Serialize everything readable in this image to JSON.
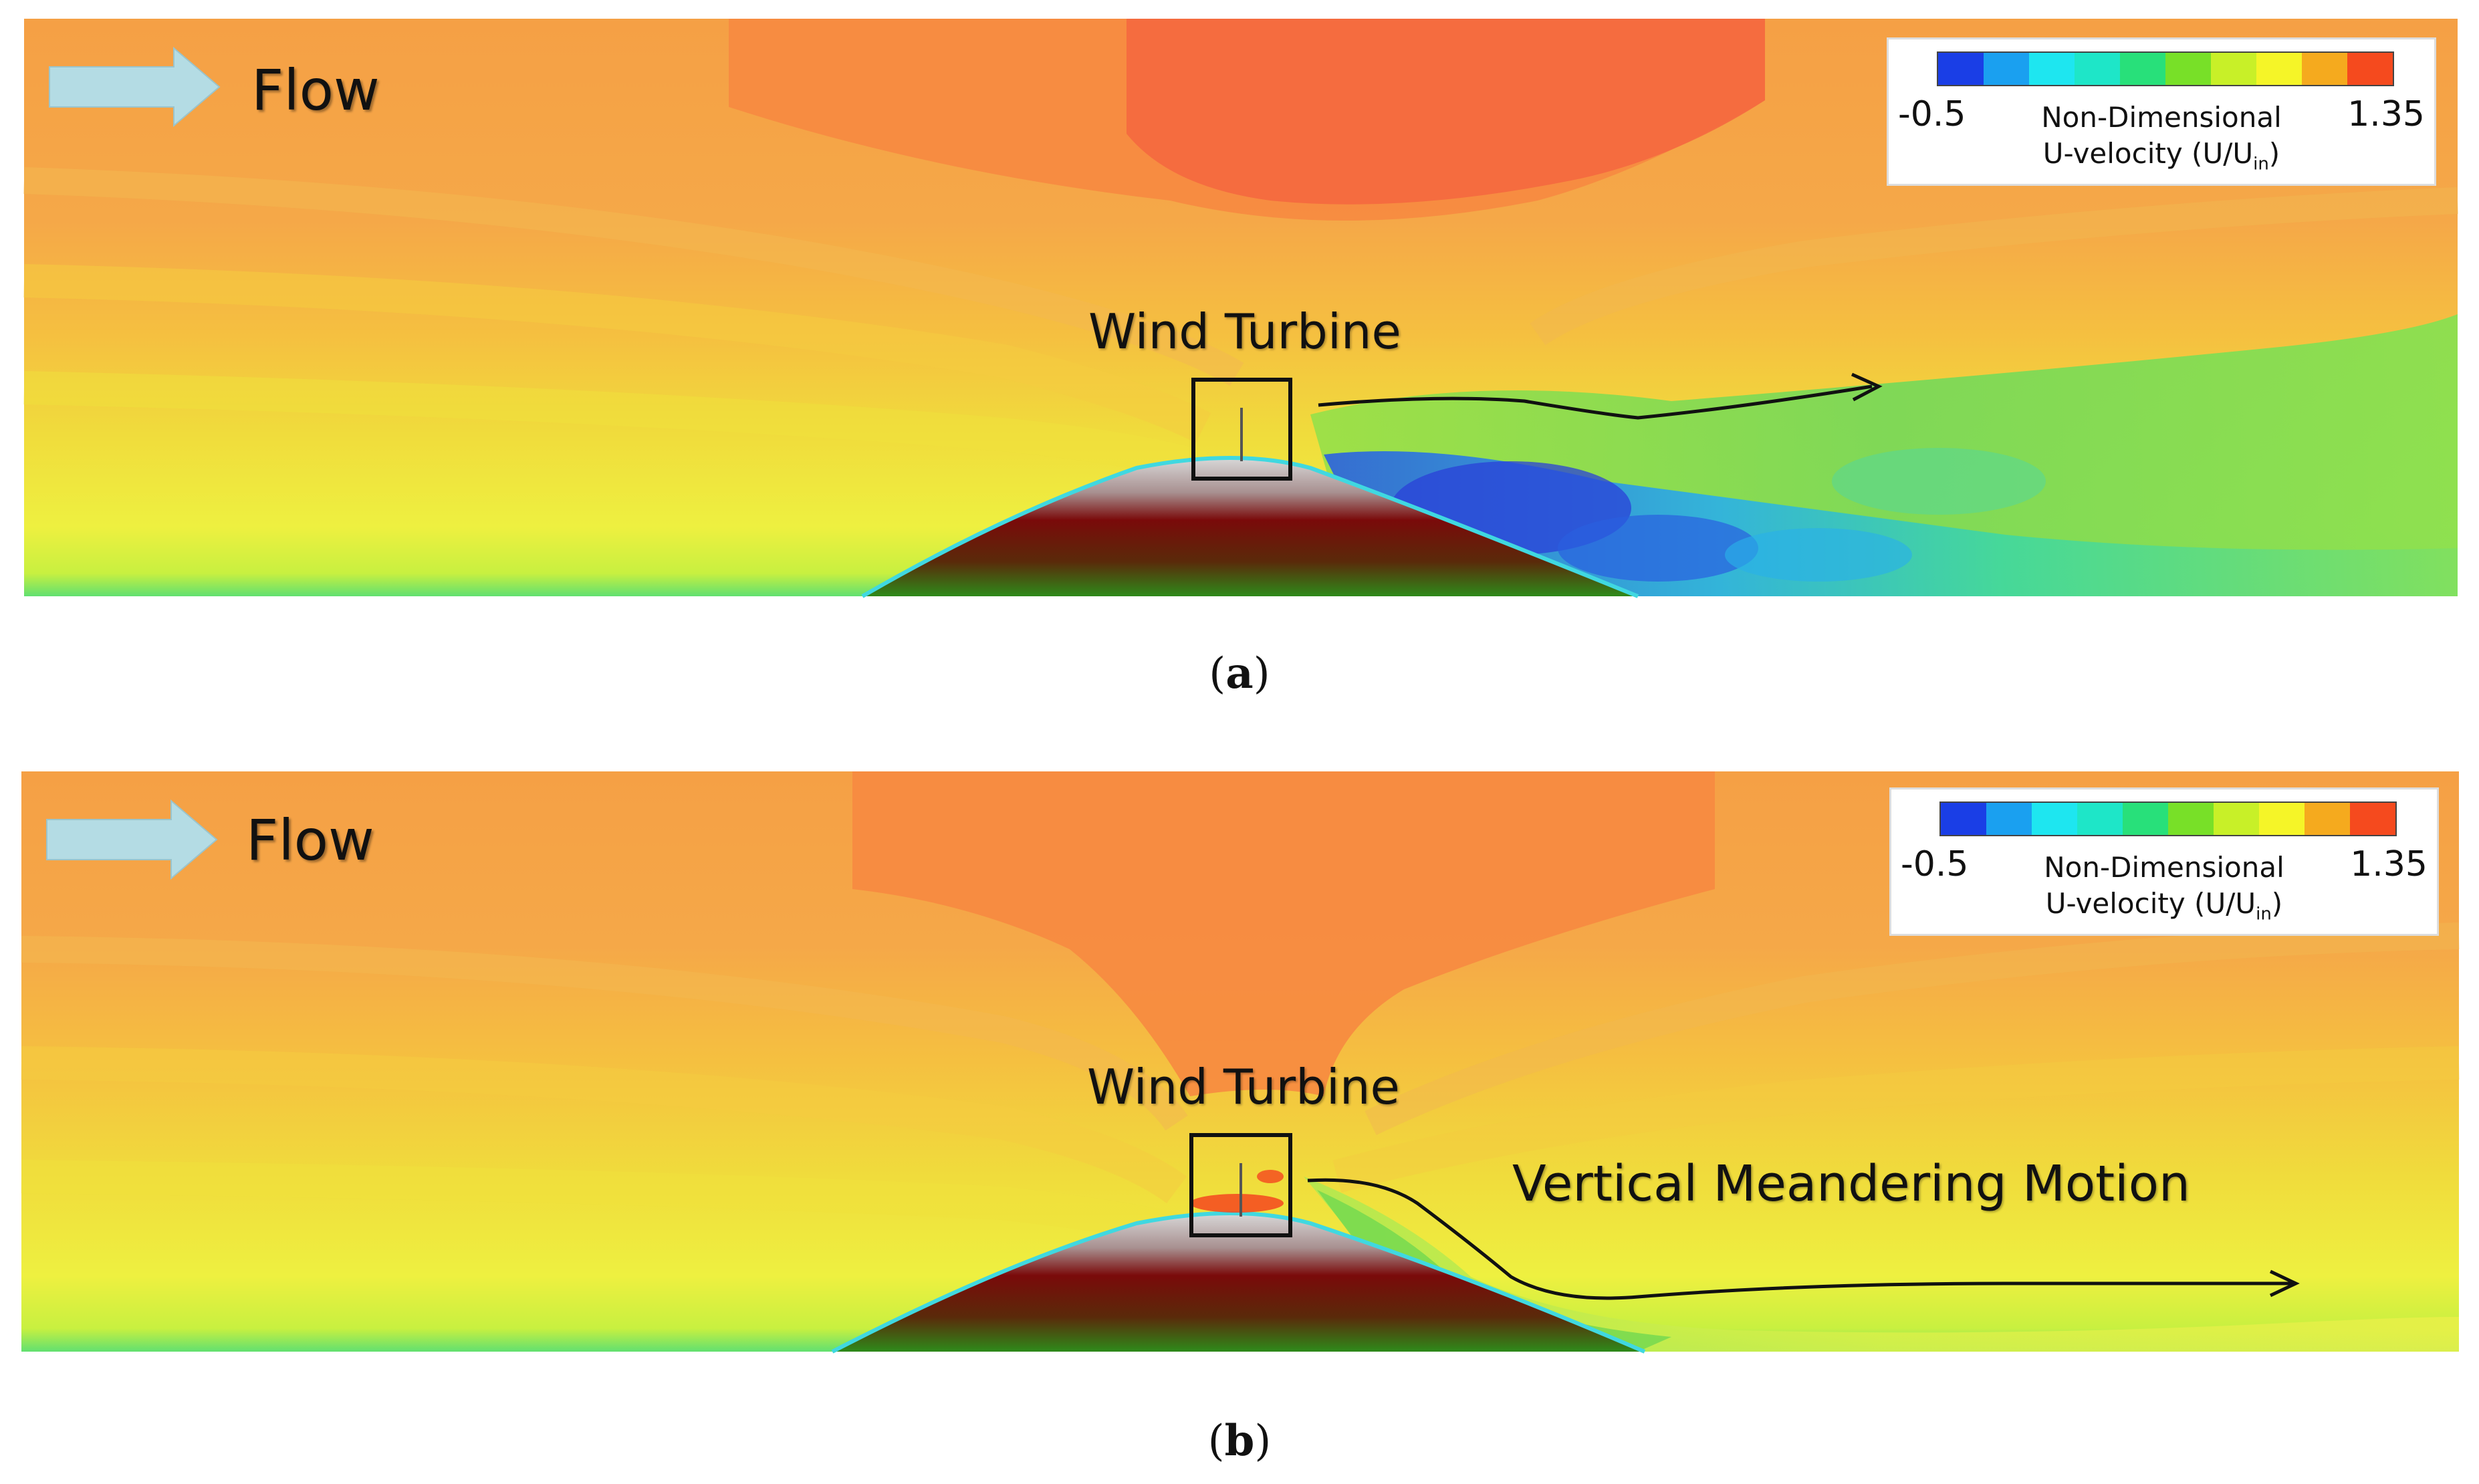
{
  "panels": [
    {
      "id": "a",
      "flow_label": "Flow",
      "turbine_label": "Wind Turbine",
      "motion_label": "",
      "caption_open": "(",
      "caption_letter": "a",
      "caption_close": ")"
    },
    {
      "id": "b",
      "flow_label": "Flow",
      "turbine_label": "Wind Turbine",
      "motion_label": "Vertical Meandering Motion",
      "caption_open": "(",
      "caption_letter": "b",
      "caption_close": ")"
    }
  ],
  "legend": {
    "min_label": "-0.5",
    "max_label": "1.35",
    "title_line1": "Non-Dimensional",
    "title_line2_main": "U-velocity (U/U",
    "title_line2_sub": "in",
    "title_line2_end": ")",
    "colors": [
      "#1a3ee6",
      "#1aa0f0",
      "#1ee6f0",
      "#1ee6c8",
      "#28e07a",
      "#78e028",
      "#c8f028",
      "#f5f528",
      "#f5aa1e",
      "#f54a1e"
    ]
  },
  "colors": {
    "free_stream": "#f5a045",
    "high_speed": "#f78a40",
    "peak_speed": "#f56640",
    "near_ground": "#eef040",
    "wake_green": "#7cd85a",
    "wake_blue": "#2a60e0",
    "hill_top": "#c8c8c8",
    "hill_mid": "#7a0a0a",
    "hill_base": "#2e8a1a",
    "arrow_fill": "#b4dce4"
  }
}
